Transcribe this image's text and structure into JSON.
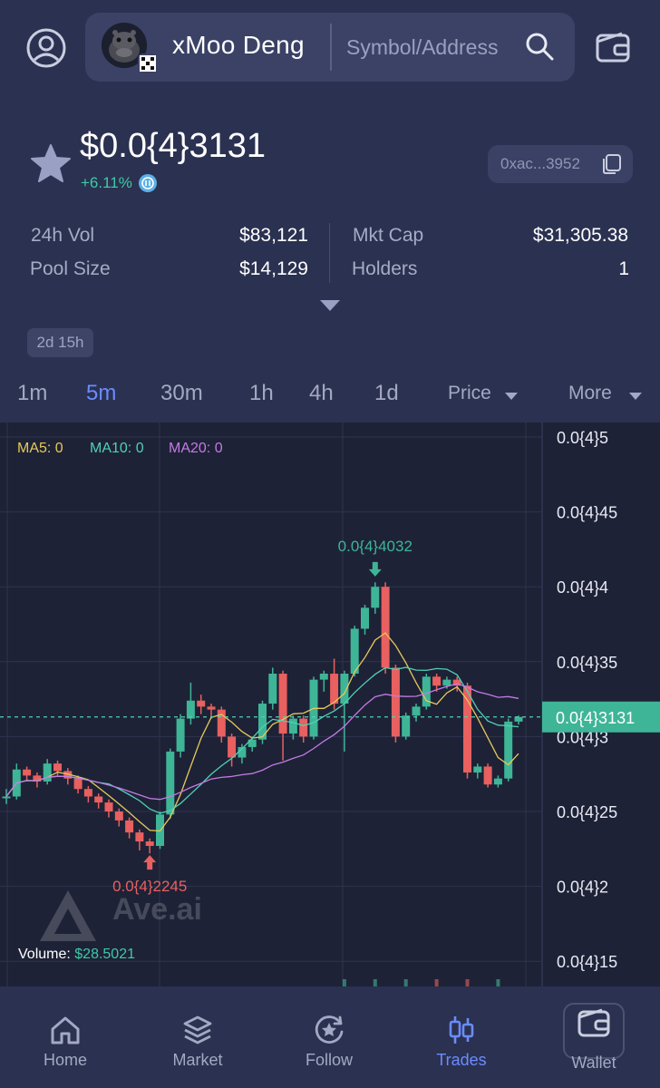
{
  "header": {
    "token_name": "xMoo Deng",
    "search_placeholder": "Symbol/Address",
    "chain_badge_icon": "okx-chain-icon",
    "accent_color": "#6a8cff"
  },
  "token": {
    "price": "$0.0{4}3131",
    "change": "+6.11%",
    "change_color": "#3fc9a7",
    "address": "0xac...3952",
    "age": "2d 15h"
  },
  "stats": {
    "vol_24h_label": "24h Vol",
    "vol_24h_value": "$83,121",
    "pool_size_label": "Pool Size",
    "pool_size_value": "$14,129",
    "mkt_cap_label": "Mkt Cap",
    "mkt_cap_value": "$31,305.38",
    "holders_label": "Holders",
    "holders_value": "1"
  },
  "intervals": {
    "items": [
      "1m",
      "5m",
      "30m",
      "1h",
      "4h",
      "1d"
    ],
    "active": "5m",
    "price_dropdown": "Price",
    "more_dropdown": "More"
  },
  "chart_data": {
    "type": "candlestick",
    "ma_legend": [
      {
        "label": "MA5: 0",
        "color": "#e6c95a"
      },
      {
        "label": "MA10: 0",
        "color": "#4fd1b5"
      },
      {
        "label": "MA20: 0",
        "color": "#c47ae6"
      }
    ],
    "y_ticks": [
      "0.0{4}5",
      "0.0{4}45",
      "0.0{4}4",
      "0.0{4}35",
      "0.0{4}3",
      "0.0{4}25",
      "0.0{4}2",
      "0.0{4}15"
    ],
    "y_tick_values": [
      5,
      4.5,
      4,
      3.5,
      3,
      2.5,
      2,
      1.5
    ],
    "y_unit_note": "values in units of 1e-5",
    "current_price_label": "0.0{4}3131",
    "current_price_value": 3.131,
    "high_label": "0.0{4}4032",
    "high_value": 4.032,
    "low_label": "0.0{4}2245",
    "low_value": 2.245,
    "up_color": "#3fb597",
    "down_color": "#e8605f",
    "volume_label": "Volume:",
    "volume_value": "$28.5021",
    "watermark": "Ave.ai",
    "candles": [
      [
        2.6,
        2.6,
        2.55,
        2.65
      ],
      [
        2.6,
        2.78,
        2.58,
        2.82
      ],
      [
        2.78,
        2.74,
        2.7,
        2.8
      ],
      [
        2.74,
        2.7,
        2.66,
        2.76
      ],
      [
        2.7,
        2.82,
        2.68,
        2.85
      ],
      [
        2.82,
        2.77,
        2.74,
        2.84
      ],
      [
        2.77,
        2.72,
        2.68,
        2.79
      ],
      [
        2.72,
        2.65,
        2.62,
        2.74
      ],
      [
        2.65,
        2.6,
        2.56,
        2.67
      ],
      [
        2.6,
        2.56,
        2.52,
        2.62
      ],
      [
        2.56,
        2.5,
        2.46,
        2.58
      ],
      [
        2.5,
        2.44,
        2.4,
        2.52
      ],
      [
        2.44,
        2.36,
        2.32,
        2.46
      ],
      [
        2.36,
        2.3,
        2.24,
        2.38
      ],
      [
        2.3,
        2.27,
        2.22,
        2.32
      ],
      [
        2.27,
        2.48,
        2.25,
        2.5
      ],
      [
        2.48,
        2.9,
        2.45,
        2.92
      ],
      [
        2.9,
        3.12,
        2.86,
        3.15
      ],
      [
        3.12,
        3.24,
        3.08,
        3.36
      ],
      [
        3.24,
        3.2,
        3.15,
        3.28
      ],
      [
        3.2,
        3.18,
        3.12,
        3.22
      ],
      [
        3.18,
        3.0,
        2.96,
        3.2
      ],
      [
        3.0,
        2.86,
        2.8,
        3.02
      ],
      [
        2.86,
        2.93,
        2.82,
        2.95
      ],
      [
        2.93,
        2.98,
        2.9,
        3.0
      ],
      [
        2.98,
        3.22,
        2.95,
        3.24
      ],
      [
        3.22,
        3.42,
        3.18,
        3.46
      ],
      [
        3.42,
        3.02,
        2.84,
        3.44
      ],
      [
        3.02,
        3.12,
        2.98,
        3.14
      ],
      [
        3.12,
        3.0,
        2.96,
        3.14
      ],
      [
        3.0,
        3.38,
        2.98,
        3.4
      ],
      [
        3.38,
        3.42,
        3.3,
        3.44
      ],
      [
        3.42,
        3.22,
        3.18,
        3.52
      ],
      [
        3.22,
        3.42,
        2.9,
        3.44
      ],
      [
        3.42,
        3.72,
        3.4,
        3.74
      ],
      [
        3.72,
        3.86,
        3.68,
        3.88
      ],
      [
        3.86,
        4.0,
        3.82,
        4.03
      ],
      [
        4.0,
        3.46,
        3.42,
        4.03
      ],
      [
        3.46,
        3.0,
        2.96,
        3.48
      ],
      [
        3.0,
        3.14,
        2.98,
        3.16
      ],
      [
        3.14,
        3.2,
        3.1,
        3.22
      ],
      [
        3.2,
        3.4,
        3.18,
        3.42
      ],
      [
        3.4,
        3.34,
        3.3,
        3.42
      ],
      [
        3.34,
        3.38,
        3.32,
        3.4
      ],
      [
        3.38,
        3.34,
        3.3,
        3.4
      ],
      [
        3.34,
        2.76,
        2.72,
        3.36
      ],
      [
        2.76,
        2.8,
        2.72,
        2.82
      ],
      [
        2.8,
        2.68,
        2.66,
        2.82
      ],
      [
        2.68,
        2.72,
        2.66,
        2.74
      ],
      [
        2.72,
        3.1,
        2.7,
        3.12
      ],
      [
        3.1,
        3.131,
        3.08,
        3.14
      ]
    ]
  },
  "nav": {
    "items": [
      {
        "label": "Home",
        "icon": "home-icon"
      },
      {
        "label": "Market",
        "icon": "layers-icon"
      },
      {
        "label": "Follow",
        "icon": "star-circle-icon"
      },
      {
        "label": "Trades",
        "icon": "candles-icon"
      },
      {
        "label": "Wallet",
        "icon": "wallet-icon"
      }
    ],
    "active": "Trades"
  }
}
